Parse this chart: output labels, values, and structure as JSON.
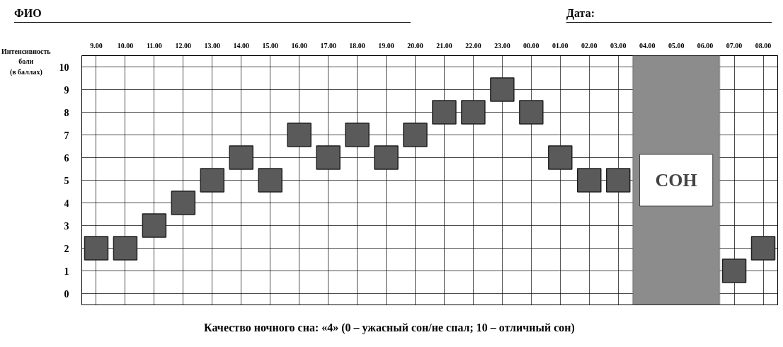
{
  "chart_data": {
    "type": "scatter",
    "ylabel": "Интенсивность\nболи\n(в баллах)",
    "categories": [
      "9.00",
      "10.00",
      "11.00",
      "12.00",
      "13.00",
      "14.00",
      "15.00",
      "16.00",
      "17.00",
      "18.00",
      "19.00",
      "20.00",
      "21.00",
      "22.00",
      "23.00",
      "00.00",
      "01.00",
      "02.00",
      "03.00",
      "04.00",
      "05.00",
      "06.00",
      "07.00",
      "08.00"
    ],
    "series": [
      {
        "color": "#5a5a5a",
        "values": [
          2,
          2,
          3,
          4,
          5,
          6,
          5,
          7,
          6,
          7,
          6,
          7,
          8,
          8,
          9,
          8,
          6,
          5,
          5,
          null,
          null,
          null,
          1,
          2
        ]
      }
    ],
    "ylim": [
      -0.5,
      10.5
    ],
    "yticks": [
      0,
      1,
      2,
      3,
      4,
      5,
      6,
      7,
      8,
      9,
      10
    ],
    "grid": true,
    "marker": "square",
    "bands": [
      {
        "axis": "x",
        "from": "04.00",
        "to": "06.00",
        "label": "СОН",
        "color": "#8c8c8c"
      }
    ],
    "annotations": [
      "ФИО",
      "Дата:",
      "Качество ночного сна: «4» (0 – ужасный сон/не спал; 10 – отличный сон)"
    ]
  }
}
